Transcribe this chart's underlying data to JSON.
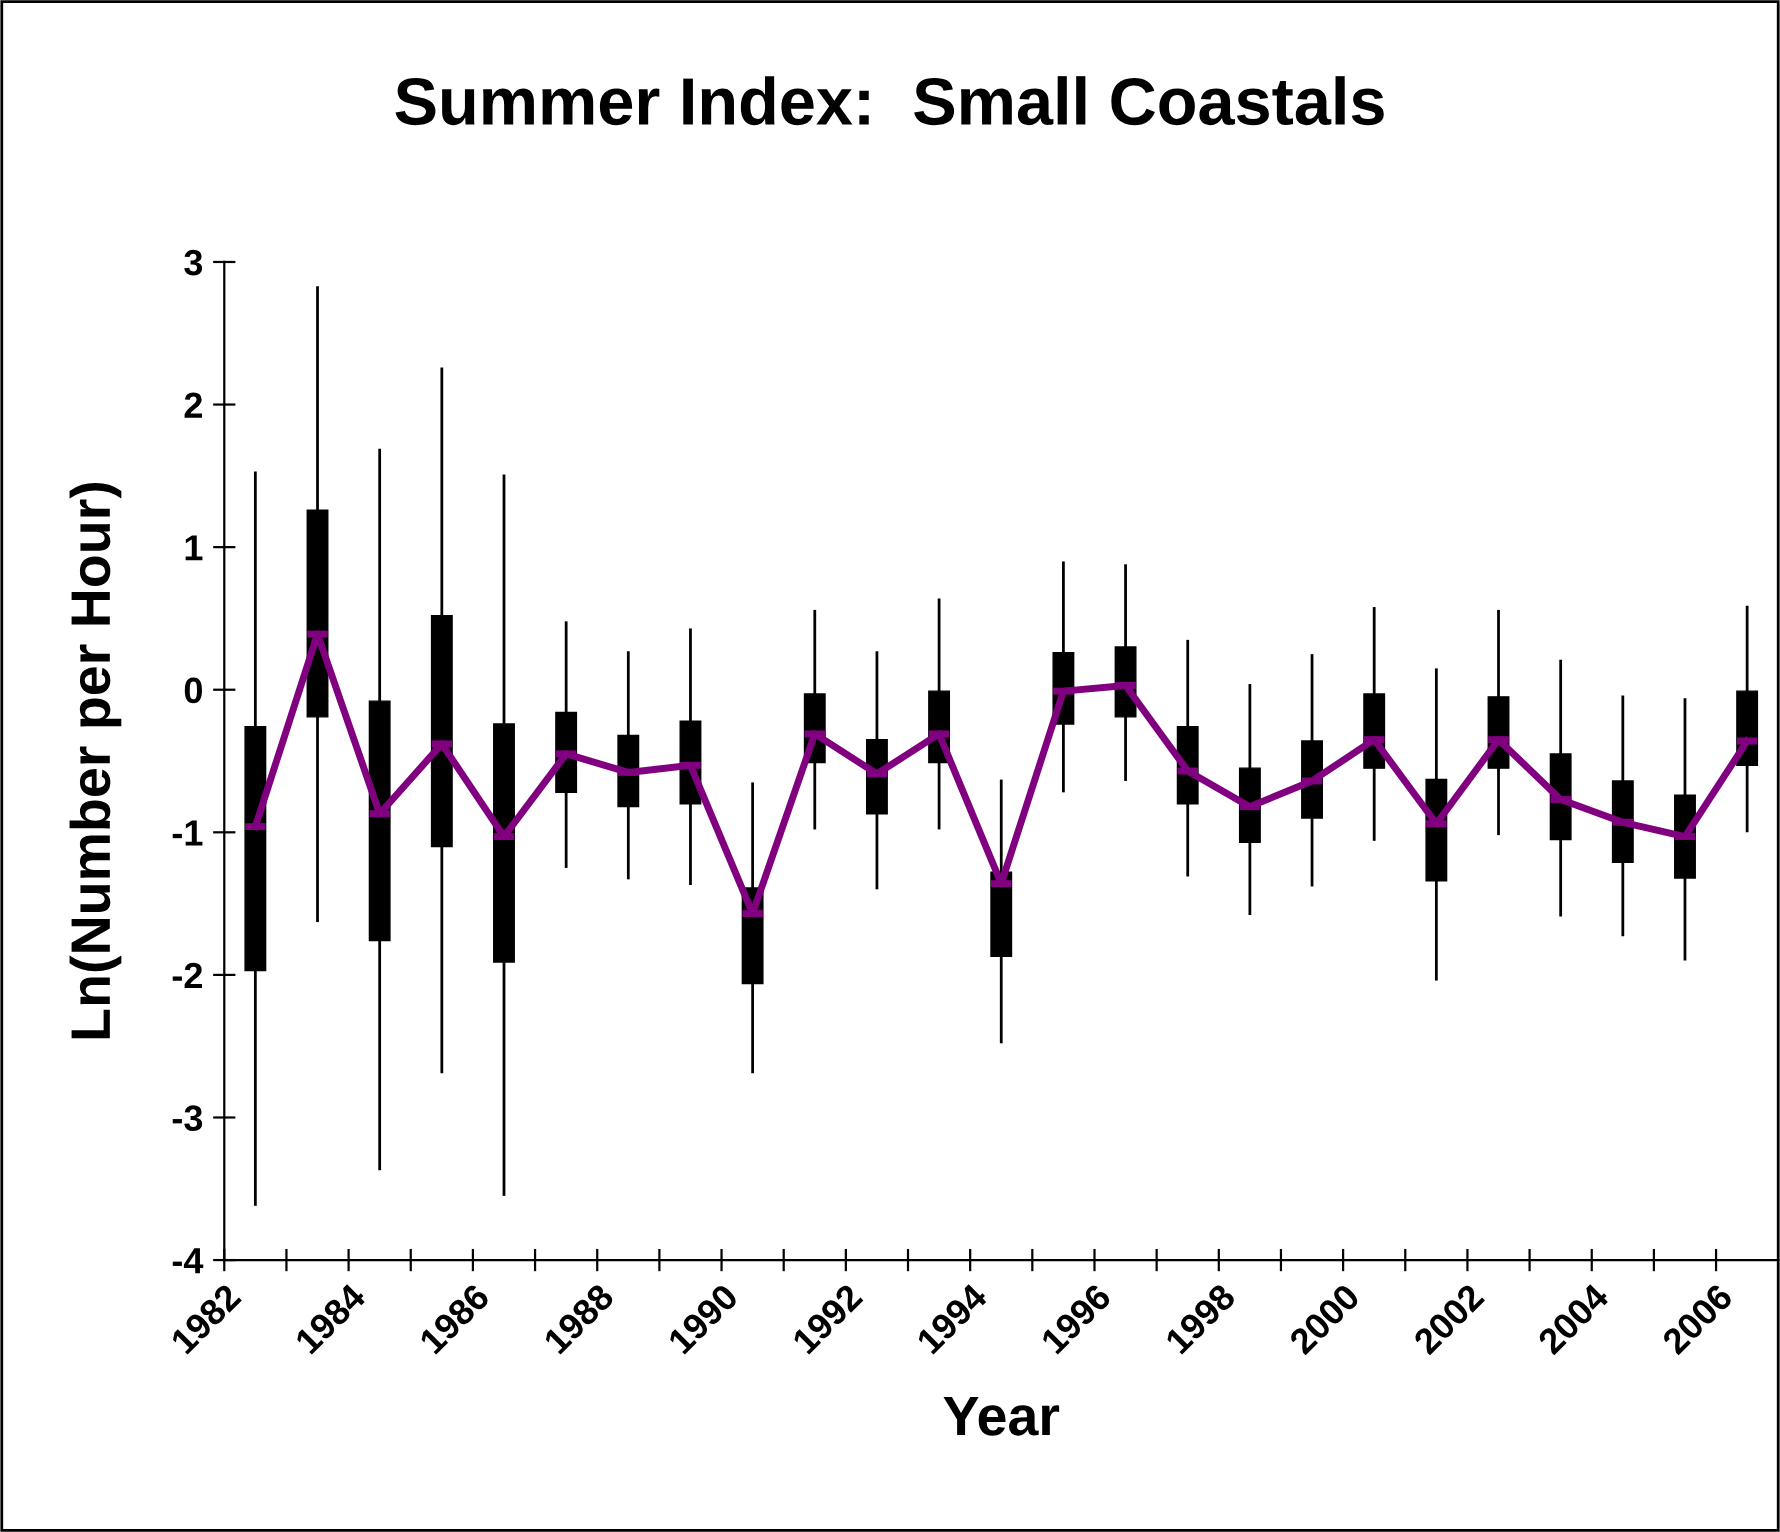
{
  "chart_data": {
    "type": "box",
    "title": "Summer Index:  Small Coastals",
    "xlabel": "Year",
    "ylabel": "Ln(Number per Hour)",
    "x": [
      1982.5,
      1983.5,
      1984.5,
      1985.5,
      1986.5,
      1987.5,
      1988.5,
      1989.5,
      1990.5,
      1991.5,
      1992.5,
      1993.5,
      1994.5,
      1995.5,
      1996.5,
      1997.5,
      1998.5,
      1999.5,
      2000.5,
      2001.5,
      2002.5,
      2003.5,
      2004.5,
      2005.5,
      2006.5
    ],
    "boxes": [
      {
        "low": -3.61,
        "q1": -1.97,
        "median": -0.96,
        "q3": -0.26,
        "high": 1.52
      },
      {
        "low": -1.62,
        "q1": -0.19,
        "median": 0.39,
        "q3": 1.26,
        "high": 2.82
      },
      {
        "low": -3.36,
        "q1": -1.76,
        "median": -0.87,
        "q3": -0.08,
        "high": 1.68
      },
      {
        "low": -2.68,
        "q1": -1.1,
        "median": -0.38,
        "q3": 0.52,
        "high": 2.25
      },
      {
        "low": -3.54,
        "q1": -1.91,
        "median": -1.03,
        "q3": -0.24,
        "high": 1.5
      },
      {
        "low": -1.24,
        "q1": -0.72,
        "median": -0.45,
        "q3": -0.16,
        "high": 0.47
      },
      {
        "low": -1.32,
        "q1": -0.82,
        "median": -0.58,
        "q3": -0.32,
        "high": 0.26
      },
      {
        "low": -1.36,
        "q1": -0.8,
        "median": -0.53,
        "q3": -0.22,
        "high": 0.42
      },
      {
        "low": -2.68,
        "q1": -2.06,
        "median": -1.57,
        "q3": -1.39,
        "high": -0.66
      },
      {
        "low": -0.97,
        "q1": -0.51,
        "median": -0.31,
        "q3": -0.03,
        "high": 0.55
      },
      {
        "low": -1.39,
        "q1": -0.87,
        "median": -0.59,
        "q3": -0.35,
        "high": 0.26
      },
      {
        "low": -0.97,
        "q1": -0.51,
        "median": -0.31,
        "q3": -0.01,
        "high": 0.63
      },
      {
        "low": -2.47,
        "q1": -1.87,
        "median": -1.36,
        "q3": -1.28,
        "high": -0.64
      },
      {
        "low": -0.71,
        "q1": -0.24,
        "median": -0.01,
        "q3": 0.26,
        "high": 0.89
      },
      {
        "low": -0.63,
        "q1": -0.19,
        "median": 0.03,
        "q3": 0.3,
        "high": 0.87
      },
      {
        "low": -1.3,
        "q1": -0.8,
        "median": -0.57,
        "q3": -0.26,
        "high": 0.34
      },
      {
        "low": -1.57,
        "q1": -1.07,
        "median": -0.82,
        "q3": -0.55,
        "high": 0.03
      },
      {
        "low": -1.37,
        "q1": -0.9,
        "median": -0.64,
        "q3": -0.36,
        "high": 0.24
      },
      {
        "low": -1.05,
        "q1": -0.55,
        "median": -0.35,
        "q3": -0.03,
        "high": 0.57
      },
      {
        "low": -2.03,
        "q1": -1.34,
        "median": -0.94,
        "q3": -0.63,
        "high": 0.14
      },
      {
        "low": -1.01,
        "q1": -0.55,
        "median": -0.35,
        "q3": -0.05,
        "high": 0.55
      },
      {
        "low": -1.58,
        "q1": -1.05,
        "median": -0.77,
        "q3": -0.45,
        "high": 0.2
      },
      {
        "low": -1.72,
        "q1": -1.21,
        "median": -0.93,
        "q3": -0.64,
        "high": -0.05
      },
      {
        "low": -1.89,
        "q1": -1.32,
        "median": -1.03,
        "q3": -0.74,
        "high": -0.07
      },
      {
        "low": -0.99,
        "q1": -0.53,
        "median": -0.36,
        "q3": -0.01,
        "high": 0.58
      }
    ],
    "series": [
      {
        "type": "line",
        "color": "#800080",
        "values": [
          -0.96,
          0.39,
          -0.87,
          -0.38,
          -1.03,
          -0.45,
          -0.58,
          -0.53,
          -1.57,
          -0.31,
          -0.59,
          -0.31,
          -1.36,
          -0.01,
          0.03,
          -0.57,
          -0.82,
          -0.64,
          -0.35,
          -0.94,
          -0.35,
          -0.77,
          -0.93,
          -1.03,
          -0.36
        ]
      }
    ],
    "xlim": [
      1982,
      2007
    ],
    "xticks": [
      1982,
      {
        "value": 1983,
        "label": null
      },
      1984,
      {
        "value": 1985,
        "label": null
      },
      1986,
      {
        "value": 1987,
        "label": null
      },
      1988,
      {
        "value": 1989,
        "label": null
      },
      1990,
      {
        "value": 1991,
        "label": null
      },
      1992,
      {
        "value": 1993,
        "label": null
      },
      1994,
      {
        "value": 1995,
        "label": null
      },
      1996,
      {
        "value": 1997,
        "label": null
      },
      1998,
      {
        "value": 1999,
        "label": null
      },
      2000,
      {
        "value": 2001,
        "label": null
      },
      2002,
      {
        "value": 2003,
        "label": null
      },
      2004,
      {
        "value": 2005,
        "label": null
      },
      2006
    ],
    "ylim": [
      -4,
      3
    ],
    "yticks": [
      -4,
      -3,
      -2,
      -1,
      0,
      1,
      2,
      3
    ],
    "grid": false,
    "legend": false,
    "marker": "none",
    "line_style": "solid"
  }
}
